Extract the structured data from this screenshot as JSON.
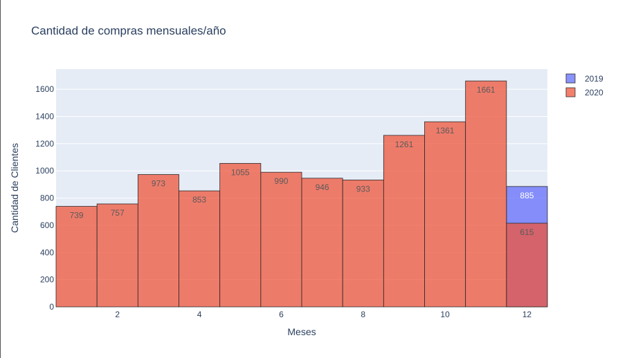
{
  "chart_data": {
    "type": "bar",
    "barmode": "overlay",
    "title": "Cantidad de compras mensuales/año",
    "xlabel": "Meses",
    "ylabel": "Cantidad de Clientes",
    "x": [
      1,
      2,
      3,
      4,
      5,
      6,
      7,
      8,
      9,
      10,
      11,
      12
    ],
    "xticks": [
      2,
      4,
      6,
      8,
      10,
      12
    ],
    "yticks": [
      0,
      200,
      400,
      600,
      800,
      1000,
      1200,
      1400,
      1600
    ],
    "xlim": [
      0.5,
      12.5
    ],
    "ylim": [
      0,
      1748
    ],
    "grid": true,
    "legend_position": "top-right",
    "series": [
      {
        "name": "2019",
        "color": "#636efa",
        "x": [
          12
        ],
        "values": [
          885
        ],
        "labels": [
          "885"
        ]
      },
      {
        "name": "2020",
        "color": "#ef553b",
        "x": [
          1,
          2,
          3,
          4,
          5,
          6,
          7,
          8,
          9,
          10,
          11,
          12
        ],
        "values": [
          739,
          757,
          973,
          853,
          1055,
          990,
          946,
          933,
          1261,
          1361,
          1661,
          615
        ],
        "labels": [
          "739",
          "757",
          "973",
          "853",
          "1055",
          "990",
          "946",
          "933",
          "1261",
          "1361",
          "1661",
          "615"
        ]
      }
    ]
  }
}
